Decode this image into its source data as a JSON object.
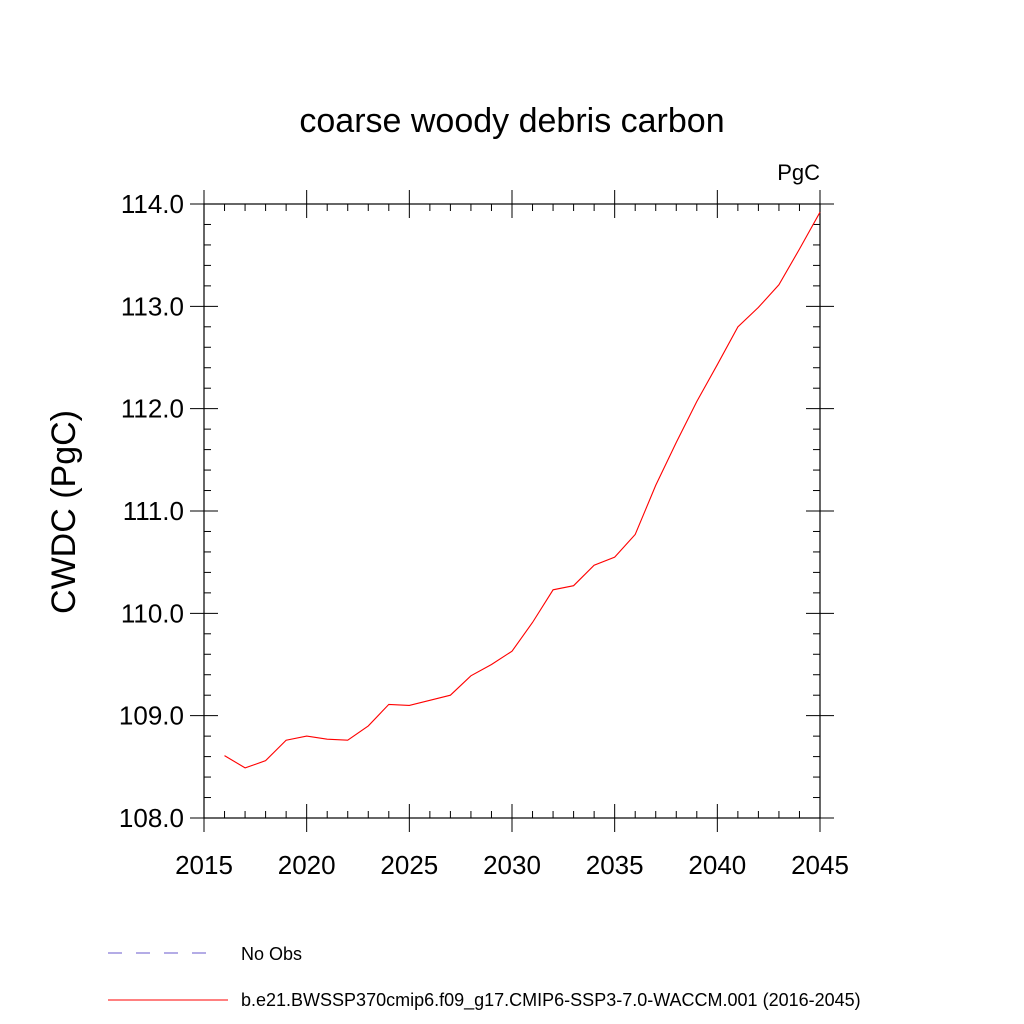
{
  "chart_data": {
    "type": "line",
    "title": "coarse woody debris carbon",
    "units_label": "PgC",
    "ylabel": "CWDC  (PgC)",
    "xlabel": "",
    "xlim": [
      2015,
      2045
    ],
    "ylim": [
      108.0,
      114.0
    ],
    "x_ticks": [
      2015,
      2020,
      2025,
      2030,
      2035,
      2040,
      2045
    ],
    "x_tick_labels": [
      "2015",
      "2020",
      "2025",
      "2030",
      "2035",
      "2040",
      "2045"
    ],
    "y_ticks": [
      108,
      109,
      110,
      111,
      112,
      113,
      114
    ],
    "y_tick_labels": [
      "108.0",
      "109.0",
      "110.0",
      "111.0",
      "112.0",
      "113.0",
      "114.0"
    ],
    "grid": false,
    "legend_position": "bottom",
    "series": [
      {
        "name": "b.e21.BWSSP370cmip6.f09_g17.CMIP6-SSP3-7.0-WACCM.001 (2016-2045)",
        "color": "#ff0000",
        "line_style": "solid",
        "x": [
          2016,
          2017,
          2018,
          2019,
          2020,
          2021,
          2022,
          2023,
          2024,
          2025,
          2026,
          2027,
          2028,
          2029,
          2030,
          2031,
          2032,
          2033,
          2034,
          2035,
          2036,
          2037,
          2038,
          2039,
          2040,
          2041,
          2042,
          2043,
          2044,
          2045
        ],
        "y": [
          108.61,
          108.49,
          108.56,
          108.76,
          108.8,
          108.77,
          108.76,
          108.9,
          109.11,
          109.1,
          109.15,
          109.2,
          109.39,
          109.5,
          109.63,
          109.91,
          110.23,
          110.27,
          110.47,
          110.55,
          110.77,
          111.25,
          111.67,
          112.07,
          112.43,
          112.8,
          112.99,
          113.21,
          113.56,
          113.92
        ]
      },
      {
        "name": "No Obs",
        "color": "#6a5acd",
        "line_style": "dashed",
        "x": [],
        "y": []
      }
    ]
  }
}
